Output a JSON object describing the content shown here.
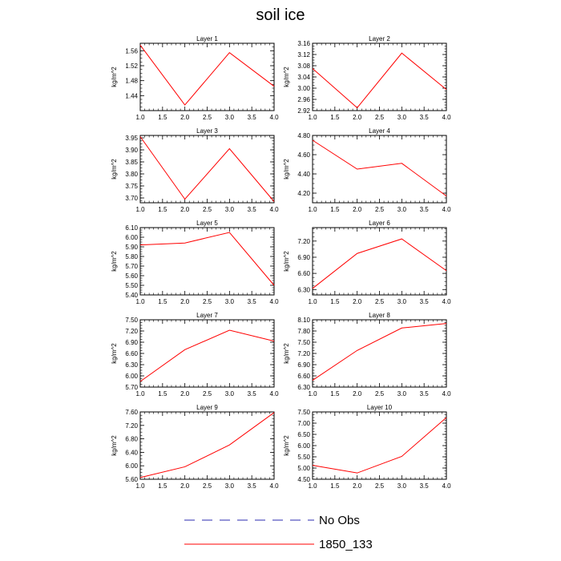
{
  "title": "soil ice",
  "colors": {
    "series": "#ff0000",
    "obs": "#2b2bb0",
    "axis": "#000000"
  },
  "legend": [
    {
      "label": "No Obs",
      "style": "dashed",
      "color": "#2b2bb0"
    },
    {
      "label": "1850_133",
      "style": "solid",
      "color": "#ff0000"
    }
  ],
  "chart_data": [
    {
      "type": "line",
      "title": "Layer 1",
      "ylabel": "kg/m^2",
      "xlim": [
        1.0,
        4.0
      ],
      "xticks": [
        "1.0",
        "1.5",
        "2.0",
        "2.5",
        "3.0",
        "3.5",
        "4.0"
      ],
      "ylim": [
        1.4,
        1.58
      ],
      "yticks": [
        "1.44",
        "1.48",
        "1.52",
        "1.56"
      ],
      "series": [
        {
          "name": "1850_133",
          "x": [
            1,
            2,
            3,
            4
          ],
          "y": [
            1.575,
            1.415,
            1.555,
            1.465
          ]
        }
      ]
    },
    {
      "type": "line",
      "title": "Layer 2",
      "ylabel": "kg/m^2",
      "xlim": [
        1.0,
        4.0
      ],
      "xticks": [
        "1.0",
        "1.5",
        "2.0",
        "2.5",
        "3.0",
        "3.5",
        "4.0"
      ],
      "ylim": [
        2.92,
        3.16
      ],
      "yticks": [
        "2.92",
        "2.96",
        "3.00",
        "3.04",
        "3.08",
        "3.12",
        "3.16"
      ],
      "series": [
        {
          "name": "1850_133",
          "x": [
            1,
            2,
            3,
            4
          ],
          "y": [
            3.07,
            2.93,
            3.125,
            2.995
          ]
        }
      ]
    },
    {
      "type": "line",
      "title": "Layer 3",
      "ylabel": "kg/m^2",
      "xlim": [
        1.0,
        4.0
      ],
      "xticks": [
        "1.0",
        "1.5",
        "2.0",
        "2.5",
        "3.0",
        "3.5",
        "4.0"
      ],
      "ylim": [
        3.68,
        3.96
      ],
      "yticks": [
        "3.70",
        "3.75",
        "3.80",
        "3.85",
        "3.90",
        "3.95"
      ],
      "series": [
        {
          "name": "1850_133",
          "x": [
            1,
            2,
            3,
            4
          ],
          "y": [
            3.955,
            3.695,
            3.905,
            3.685
          ]
        }
      ]
    },
    {
      "type": "line",
      "title": "Layer 4",
      "ylabel": "kg/m^2",
      "xlim": [
        1.0,
        4.0
      ],
      "xticks": [
        "1.0",
        "1.5",
        "2.0",
        "2.5",
        "3.0",
        "3.5",
        "4.0"
      ],
      "ylim": [
        4.1,
        4.8
      ],
      "yticks": [
        "4.20",
        "4.40",
        "4.60",
        "4.80"
      ],
      "series": [
        {
          "name": "1850_133",
          "x": [
            1,
            2,
            3,
            4
          ],
          "y": [
            4.75,
            4.45,
            4.51,
            4.17
          ]
        }
      ]
    },
    {
      "type": "line",
      "title": "Layer 5",
      "ylabel": "kg/m^2",
      "xlim": [
        1.0,
        4.0
      ],
      "xticks": [
        "1.0",
        "1.5",
        "2.0",
        "2.5",
        "3.0",
        "3.5",
        "4.0"
      ],
      "ylim": [
        5.4,
        6.1
      ],
      "yticks": [
        "5.40",
        "5.50",
        "5.60",
        "5.70",
        "5.80",
        "5.90",
        "6.00",
        "6.10"
      ],
      "series": [
        {
          "name": "1850_133",
          "x": [
            1,
            2,
            3,
            4
          ],
          "y": [
            5.92,
            5.94,
            6.05,
            5.5
          ]
        }
      ]
    },
    {
      "type": "line",
      "title": "Layer 6",
      "ylabel": "kg/m^2",
      "xlim": [
        1.0,
        4.0
      ],
      "xticks": [
        "1.0",
        "1.5",
        "2.0",
        "2.5",
        "3.0",
        "3.5",
        "4.0"
      ],
      "ylim": [
        6.2,
        7.45
      ],
      "yticks": [
        "6.30",
        "6.60",
        "6.90",
        "7.20"
      ],
      "series": [
        {
          "name": "1850_133",
          "x": [
            1,
            2,
            3,
            4
          ],
          "y": [
            6.32,
            6.97,
            7.24,
            6.65
          ]
        }
      ]
    },
    {
      "type": "line",
      "title": "Layer 7",
      "ylabel": "kg/m^2",
      "xlim": [
        1.0,
        4.0
      ],
      "xticks": [
        "1.0",
        "1.5",
        "2.0",
        "2.5",
        "3.0",
        "3.5",
        "4.0"
      ],
      "ylim": [
        5.7,
        7.5
      ],
      "yticks": [
        "5.70",
        "6.00",
        "6.30",
        "6.60",
        "6.90",
        "7.20",
        "7.50"
      ],
      "series": [
        {
          "name": "1850_133",
          "x": [
            1,
            2,
            3,
            4
          ],
          "y": [
            5.85,
            6.7,
            7.22,
            6.93
          ]
        }
      ]
    },
    {
      "type": "line",
      "title": "Layer 8",
      "ylabel": "kg/m^2",
      "xlim": [
        1.0,
        4.0
      ],
      "xticks": [
        "1.0",
        "1.5",
        "2.0",
        "2.5",
        "3.0",
        "3.5",
        "4.0"
      ],
      "ylim": [
        6.3,
        8.1
      ],
      "yticks": [
        "6.30",
        "6.60",
        "6.90",
        "7.20",
        "7.50",
        "7.80",
        "8.10"
      ],
      "series": [
        {
          "name": "1850_133",
          "x": [
            1,
            2,
            3,
            4
          ],
          "y": [
            6.48,
            7.28,
            7.88,
            8.0
          ]
        }
      ]
    },
    {
      "type": "line",
      "title": "Layer 9",
      "ylabel": "kg/m^2",
      "xlim": [
        1.0,
        4.0
      ],
      "xticks": [
        "1.0",
        "1.5",
        "2.0",
        "2.5",
        "3.0",
        "3.5",
        "4.0"
      ],
      "ylim": [
        5.6,
        7.6
      ],
      "yticks": [
        "5.60",
        "6.00",
        "6.40",
        "6.80",
        "7.20",
        "7.60"
      ],
      "series": [
        {
          "name": "1850_133",
          "x": [
            1,
            2,
            3,
            4
          ],
          "y": [
            5.65,
            5.97,
            6.62,
            7.58
          ]
        }
      ]
    },
    {
      "type": "line",
      "title": "Layer 10",
      "ylabel": "kg/m^2",
      "xlim": [
        1.0,
        4.0
      ],
      "xticks": [
        "1.0",
        "1.5",
        "2.0",
        "2.5",
        "3.0",
        "3.5",
        "4.0"
      ],
      "ylim": [
        4.5,
        7.5
      ],
      "yticks": [
        "4.50",
        "5.00",
        "5.50",
        "6.00",
        "6.50",
        "7.00",
        "7.50"
      ],
      "series": [
        {
          "name": "1850_133",
          "x": [
            1,
            2,
            3,
            4
          ],
          "y": [
            5.12,
            4.78,
            5.52,
            7.25
          ]
        }
      ]
    }
  ]
}
